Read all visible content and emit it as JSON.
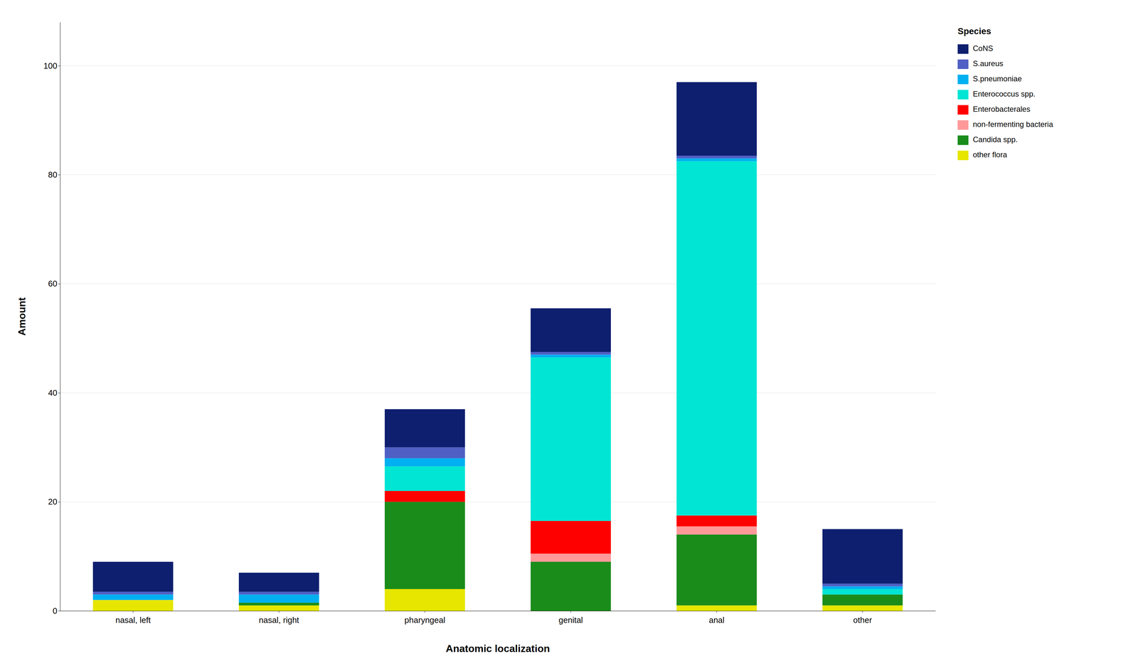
{
  "chart_data": {
    "type": "bar",
    "stacked": true,
    "categories": [
      "nasal, left",
      "nasal, right",
      "pharyngeal",
      "genital",
      "anal",
      "other"
    ],
    "series": [
      {
        "name": "other flora",
        "color": "#e6e600",
        "values": [
          2.0,
          1.0,
          4.0,
          0,
          1.0,
          1.0
        ]
      },
      {
        "name": "Candida spp.",
        "color": "#1a8c1a",
        "values": [
          0,
          0.5,
          16.0,
          9.0,
          13.0,
          2.0
        ]
      },
      {
        "name": "non-fermenting bacteria",
        "color": "#ff9999",
        "values": [
          0,
          0,
          0,
          1.5,
          1.5,
          0
        ]
      },
      {
        "name": "Enterobacterales",
        "color": "#ff0000",
        "values": [
          0,
          0,
          2.0,
          6.0,
          2.0,
          0
        ]
      },
      {
        "name": "Enterococcus spp.",
        "color": "#00e5d4",
        "values": [
          0,
          0,
          4.5,
          30.0,
          65.0,
          1.0
        ]
      },
      {
        "name": "S.pneumoniae",
        "color": "#00b0f0",
        "values": [
          1.0,
          1.5,
          1.5,
          0.5,
          0.5,
          0.5
        ]
      },
      {
        "name": "S.aureus",
        "color": "#4f5fc4",
        "values": [
          0.5,
          0.5,
          2.0,
          0.5,
          0.5,
          0.5
        ]
      },
      {
        "name": "CoNS",
        "color": "#0d1f6e",
        "values": [
          5.5,
          3.5,
          7.0,
          8.0,
          13.5,
          10.0
        ]
      }
    ],
    "xlabel": "Anatomic localization",
    "ylabel": "Amount",
    "ylim": [
      0,
      108
    ],
    "yticks": [
      0,
      20,
      40,
      60,
      80,
      100
    ],
    "grid": true,
    "legend": "upper right",
    "legend_title": "Species"
  }
}
